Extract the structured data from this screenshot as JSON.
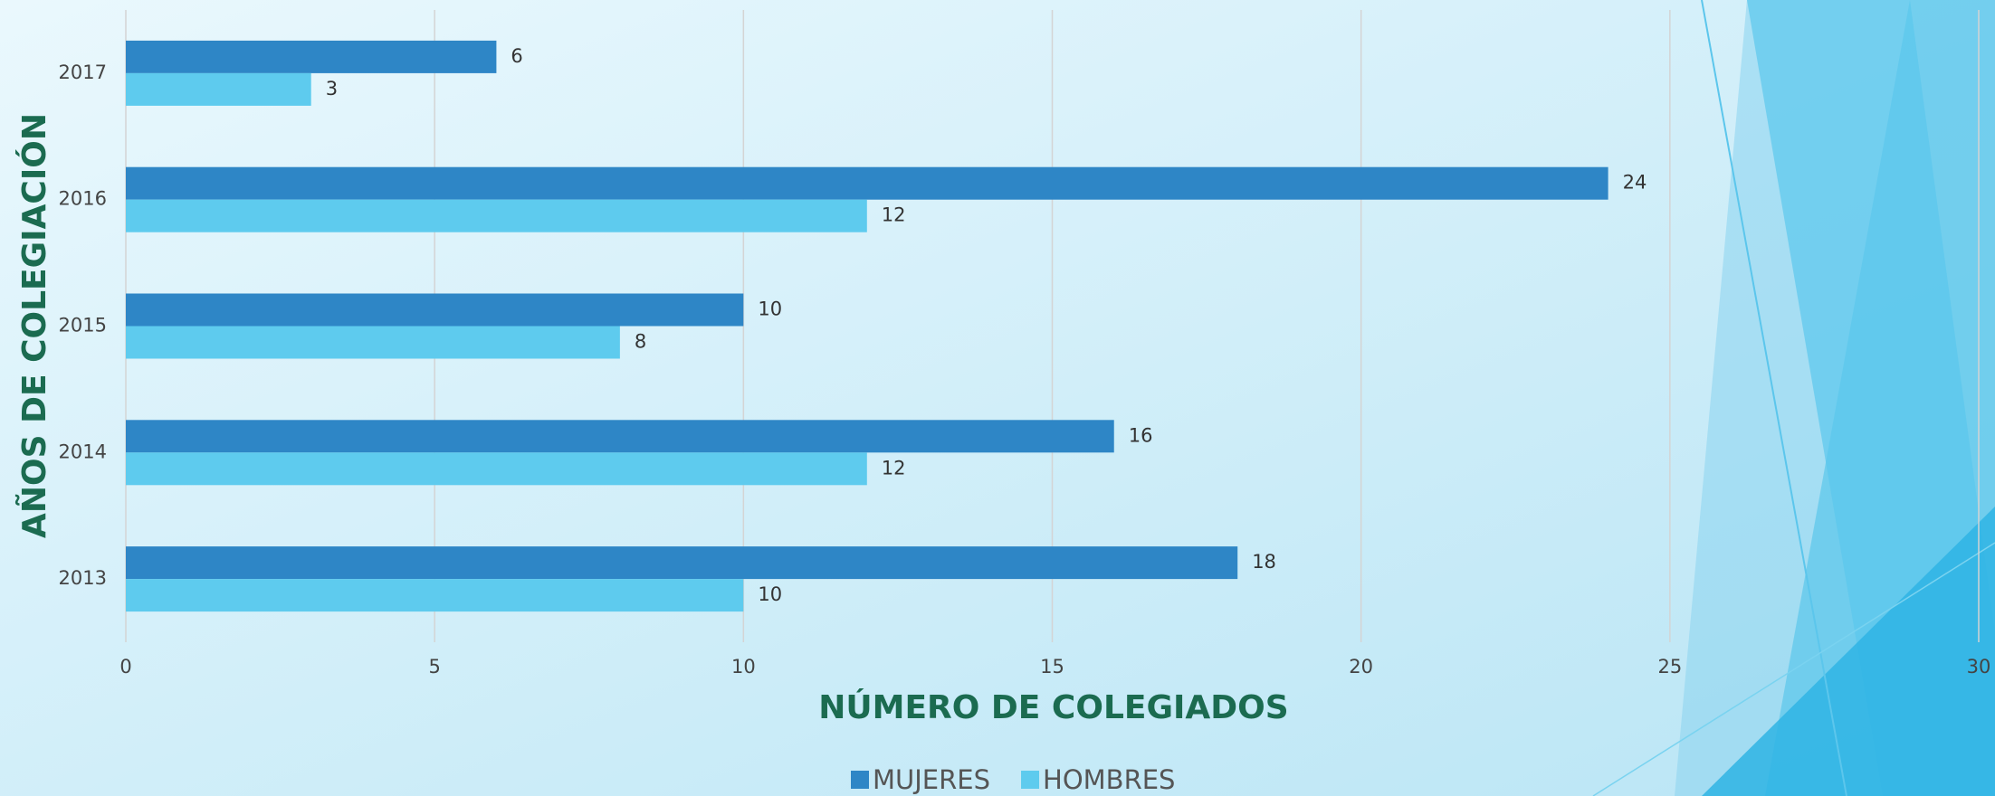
{
  "chart_data": {
    "type": "hbar",
    "x_label": "NÚMERO DE COLEGIADOS",
    "y_label": "AÑOS DE COLEGIACIÓN",
    "categories": [
      "2013",
      "2014",
      "2015",
      "2016",
      "2017"
    ],
    "series": [
      {
        "name": "MUJERES",
        "color": "#2e86c6",
        "values": [
          18,
          16,
          10,
          24,
          6
        ]
      },
      {
        "name": "HOMBRES",
        "color": "#5ecbee",
        "values": [
          10,
          12,
          8,
          12,
          3
        ]
      }
    ],
    "xlim": [
      0,
      30
    ],
    "xticks": [
      0,
      5,
      10,
      15,
      20,
      25,
      30
    ],
    "grid": true
  }
}
